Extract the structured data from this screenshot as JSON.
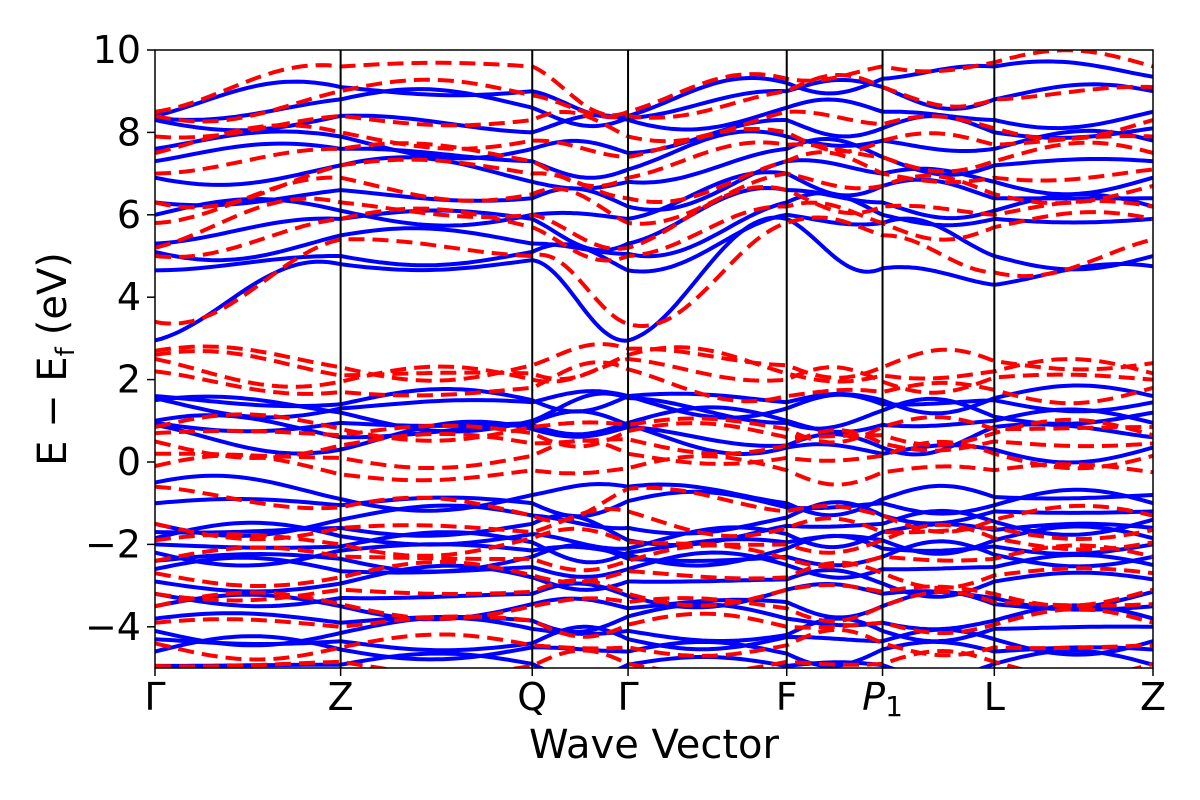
{
  "chart_data": {
    "type": "line",
    "title": "",
    "xlabel": "Wave Vector",
    "ylabel": "E − E",
    "ylabel_sub": "f",
    "ylabel_unit": "(eV)",
    "ylim": [
      -5,
      10
    ],
    "yticks": [
      -4,
      -2,
      0,
      2,
      4,
      6,
      8,
      10
    ],
    "ytick_labels": [
      "−4",
      "−2",
      "0",
      "2",
      "4",
      "6",
      "8",
      "10"
    ],
    "xlim": [
      0,
      1
    ],
    "kpoints": [
      {
        "label": "Γ",
        "sub": "",
        "italic": false,
        "x": 0.0
      },
      {
        "label": "Z",
        "sub": "",
        "italic": false,
        "x": 0.186
      },
      {
        "label": "Q",
        "sub": "",
        "italic": false,
        "x": 0.378
      },
      {
        "label": "Γ",
        "sub": "",
        "italic": false,
        "x": 0.474
      },
      {
        "label": "F",
        "sub": "",
        "italic": false,
        "x": 0.633
      },
      {
        "label": "P",
        "sub": "1",
        "italic": true,
        "x": 0.729
      },
      {
        "label": "L",
        "sub": "",
        "italic": false,
        "x": 0.841
      },
      {
        "label": "Z",
        "sub": "",
        "italic": false,
        "x": 1.0
      }
    ],
    "grid": false,
    "legend": "none",
    "series": [
      {
        "style": "solid",
        "color": "#0000ff",
        "bands": [
          [
            -4.95,
            -4.92,
            -4.9,
            -4.92,
            -4.95,
            -4.93,
            -4.9,
            -4.92
          ],
          [
            -4.6,
            -4.55,
            -4.5,
            -4.6,
            -4.65,
            -4.55,
            -4.6,
            -4.55
          ],
          [
            -4.3,
            -4.35,
            -4.4,
            -4.3,
            -4.25,
            -4.35,
            -4.3,
            -4.35
          ],
          [
            -4.1,
            -4.15,
            -4.05,
            -4.1,
            -4.2,
            -4.1,
            -4.05,
            -4.0
          ],
          [
            -3.8,
            -3.9,
            -3.85,
            -3.75,
            -3.8,
            -3.9,
            -3.85,
            -3.8
          ],
          [
            -3.5,
            -3.5,
            -3.45,
            -3.55,
            -3.4,
            -3.5,
            -3.45,
            -3.5
          ],
          [
            -3.2,
            -3.3,
            -3.2,
            -3.25,
            -3.1,
            -3.2,
            -3.3,
            -3.15
          ],
          [
            -2.9,
            -2.95,
            -2.8,
            -2.9,
            -2.85,
            -2.95,
            -2.9,
            -2.85
          ],
          [
            -2.6,
            -2.65,
            -2.55,
            -2.6,
            -2.5,
            -2.6,
            -2.55,
            -2.5
          ],
          [
            -2.4,
            -2.35,
            -2.3,
            -2.35,
            -2.3,
            -2.3,
            -2.25,
            -2.3
          ],
          [
            -2.2,
            -2.15,
            -2.15,
            -2.25,
            -2.1,
            -2.1,
            -2.05,
            -2.0
          ],
          [
            -2.0,
            -2.05,
            -1.95,
            -2.2,
            -1.95,
            -1.9,
            -1.9,
            -1.85
          ],
          [
            -1.85,
            -1.8,
            -1.75,
            -2.1,
            -1.75,
            -1.7,
            -1.65,
            -1.6
          ],
          [
            -1.7,
            -1.6,
            -1.5,
            -1.9,
            -1.55,
            -1.5,
            -1.45,
            -1.4
          ],
          [
            -1.5,
            -1.4,
            -1.3,
            -1.6,
            -1.35,
            -1.3,
            -1.2,
            -1.2
          ],
          [
            -1.0,
            -1.05,
            -1.0,
            -0.95,
            -1.1,
            -1.0,
            -1.05,
            -1.0
          ],
          [
            -0.5,
            -0.9,
            -0.8,
            -0.6,
            -1.0,
            -0.9,
            -0.85,
            -0.8
          ],
          [
            0.95,
            0.95,
            0.95,
            0.9,
            0.35,
            0.2,
            0.3,
            0.35
          ],
          [
            0.9,
            0.3,
            0.8,
            0.85,
            0.4,
            0.35,
            0.85,
            0.6
          ],
          [
            1.0,
            0.6,
            0.9,
            0.95,
            1.0,
            0.9,
            1.0,
            0.95
          ],
          [
            1.5,
            1.2,
            1.0,
            1.55,
            0.95,
            1.25,
            1.1,
            1.2
          ],
          [
            1.55,
            1.3,
            1.45,
            1.6,
            1.3,
            1.4,
            1.5,
            1.45
          ],
          [
            1.6,
            1.4,
            1.5,
            1.6,
            1.45,
            1.5,
            1.55,
            1.6
          ],
          [
            2.95,
            4.8,
            4.9,
            2.95,
            5.9,
            4.7,
            4.3,
            4.75
          ],
          [
            4.65,
            5.0,
            5.1,
            4.65,
            6.0,
            5.8,
            5.0,
            5.0
          ],
          [
            5.1,
            5.5,
            5.3,
            5.05,
            6.3,
            6.0,
            5.9,
            5.9
          ],
          [
            5.3,
            5.9,
            5.9,
            5.3,
            6.6,
            6.3,
            6.1,
            6.2
          ],
          [
            6.0,
            6.1,
            6.0,
            5.9,
            7.0,
            6.7,
            6.4,
            6.4
          ],
          [
            6.3,
            6.6,
            6.4,
            6.2,
            7.3,
            7.0,
            6.8,
            6.9
          ],
          [
            6.9,
            7.2,
            6.8,
            6.8,
            7.6,
            7.4,
            7.2,
            7.3
          ],
          [
            7.3,
            7.6,
            7.3,
            7.1,
            7.9,
            7.8,
            7.6,
            7.8
          ],
          [
            7.6,
            7.9,
            7.6,
            7.5,
            8.3,
            8.1,
            8.0,
            8.1
          ],
          [
            8.3,
            8.4,
            8.0,
            8.3,
            8.6,
            8.5,
            8.3,
            8.5
          ],
          [
            8.35,
            8.8,
            8.6,
            8.35,
            9.0,
            9.1,
            8.8,
            9.0
          ],
          [
            8.4,
            9.1,
            9.0,
            8.4,
            9.2,
            9.3,
            9.6,
            9.35
          ]
        ]
      },
      {
        "style": "dashed",
        "color": "#ff0000",
        "bands": [
          [
            -4.95,
            -4.85,
            -4.95,
            -4.9,
            -4.85,
            -4.9,
            -4.85,
            -4.9
          ],
          [
            -4.4,
            -4.5,
            -4.45,
            -4.5,
            -4.45,
            -4.4,
            -4.5,
            -4.45
          ],
          [
            -3.9,
            -4.0,
            -3.85,
            -3.95,
            -4.0,
            -3.9,
            -3.95,
            -3.9
          ],
          [
            -3.5,
            -3.45,
            -3.5,
            -3.4,
            -3.55,
            -3.5,
            -3.4,
            -3.45
          ],
          [
            -3.2,
            -3.1,
            -3.15,
            -3.2,
            -3.1,
            -3.15,
            -3.2,
            -3.1
          ],
          [
            -2.7,
            -2.8,
            -2.75,
            -2.65,
            -2.8,
            -2.7,
            -2.75,
            -2.7
          ],
          [
            -2.4,
            -2.3,
            -2.35,
            -2.4,
            -2.35,
            -2.3,
            -2.35,
            -2.3
          ],
          [
            -1.9,
            -2.0,
            -1.85,
            -1.95,
            -2.0,
            -1.9,
            -1.85,
            -1.95
          ],
          [
            -1.5,
            -1.6,
            -1.7,
            -1.2,
            -1.6,
            -1.7,
            -1.6,
            -1.65
          ],
          [
            -0.6,
            -1.1,
            -1.3,
            -0.65,
            -1.2,
            -1.3,
            -1.4,
            -1.3
          ],
          [
            -0.1,
            -0.3,
            -0.2,
            -0.15,
            -0.2,
            -0.25,
            -0.2,
            -0.25
          ],
          [
            0.2,
            0.1,
            0.15,
            0.2,
            0.1,
            0.15,
            0.2,
            0.15
          ],
          [
            0.5,
            0.4,
            0.45,
            0.55,
            0.4,
            0.45,
            0.5,
            0.45
          ],
          [
            0.7,
            0.65,
            0.7,
            0.75,
            0.6,
            0.65,
            0.7,
            0.65
          ],
          [
            0.85,
            0.8,
            0.85,
            0.9,
            0.8,
            0.85,
            0.8,
            0.85
          ],
          [
            2.2,
            1.7,
            1.8,
            2.25,
            1.6,
            1.7,
            1.75,
            1.8
          ],
          [
            2.5,
            1.95,
            2.0,
            2.5,
            2.0,
            1.95,
            2.05,
            2.0
          ],
          [
            2.6,
            2.1,
            2.15,
            2.6,
            2.15,
            2.1,
            2.2,
            2.15
          ],
          [
            2.7,
            2.3,
            2.35,
            2.75,
            2.35,
            2.3,
            2.45,
            2.4
          ],
          [
            3.4,
            5.4,
            5.0,
            3.35,
            5.8,
            5.5,
            4.6,
            5.4
          ],
          [
            5.0,
            5.9,
            5.7,
            5.0,
            6.2,
            5.8,
            5.7,
            5.9
          ],
          [
            5.2,
            6.3,
            6.0,
            5.2,
            6.6,
            6.2,
            6.0,
            6.2
          ],
          [
            5.8,
            6.9,
            6.5,
            5.8,
            7.0,
            6.7,
            6.5,
            6.7
          ],
          [
            6.3,
            7.2,
            7.0,
            6.4,
            7.3,
            7.0,
            6.9,
            7.1
          ],
          [
            7.0,
            7.6,
            7.3,
            6.9,
            7.7,
            7.4,
            7.3,
            7.5
          ],
          [
            7.5,
            8.0,
            7.8,
            7.4,
            8.0,
            7.8,
            7.7,
            7.9
          ],
          [
            7.9,
            8.4,
            8.3,
            7.9,
            8.5,
            8.2,
            8.1,
            8.3
          ],
          [
            8.4,
            9.0,
            8.9,
            8.4,
            9.0,
            9.1,
            8.8,
            9.1
          ],
          [
            8.5,
            9.6,
            9.6,
            8.5,
            9.3,
            9.6,
            9.7,
            9.6
          ]
        ]
      }
    ]
  }
}
